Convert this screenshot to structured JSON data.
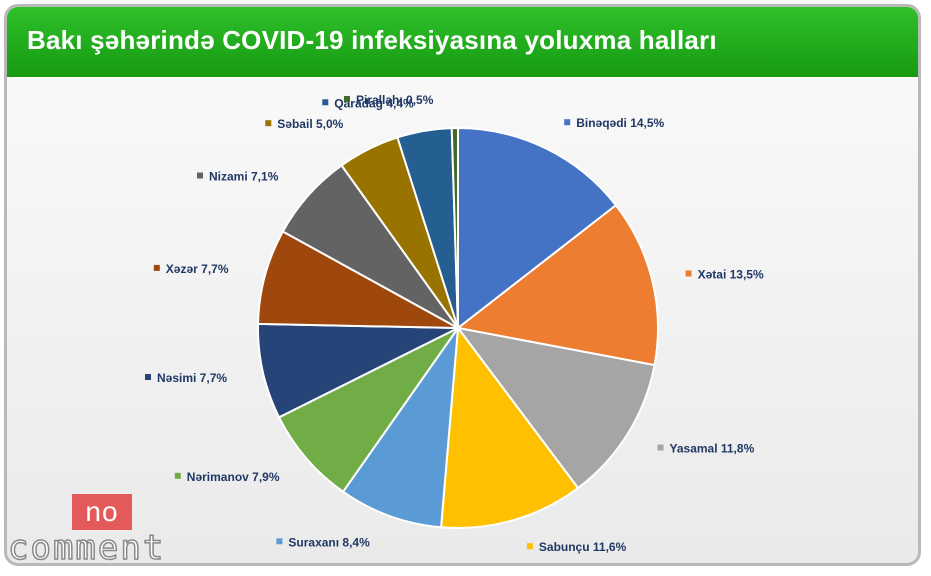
{
  "header": {
    "title": "Bakı şəhərində COVID-19 infeksiyasına yoluxma halları"
  },
  "logo": {
    "box_text": "no",
    "text": "comment"
  },
  "chart_data": {
    "type": "pie",
    "title": "Bakı şəhərində COVID-19 infeksiyasına yoluxma halları",
    "legend_placement": "labels outside slices",
    "slices": [
      {
        "label": "Binəqədi",
        "value": 14.5,
        "display": "Binəqədi 14,5%",
        "color": "#4472c4"
      },
      {
        "label": "Xətai",
        "value": 13.5,
        "display": "Xətai 13,5%",
        "color": "#ed7d31"
      },
      {
        "label": "Yasamal",
        "value": 11.8,
        "display": "Yasamal 11,8%",
        "color": "#a5a5a5"
      },
      {
        "label": "Sabunçu",
        "value": 11.6,
        "display": "Sabunçu 11,6%",
        "color": "#ffc000"
      },
      {
        "label": "Suraxanı",
        "value": 8.4,
        "display": "Suraxanı 8,4%",
        "color": "#5b9bd5"
      },
      {
        "label": "Nərimanov",
        "value": 7.9,
        "display": "Nərimanov 7,9%",
        "color": "#70ad47"
      },
      {
        "label": "Nəsimi",
        "value": 7.7,
        "display": "Nəsimi 7,7%",
        "color": "#264478"
      },
      {
        "label": "Xəzər",
        "value": 7.7,
        "display": "Xəzər 7,7%",
        "color": "#9e480e"
      },
      {
        "label": "Nizami",
        "value": 7.1,
        "display": "Nizami 7,1%",
        "color": "#636363"
      },
      {
        "label": "Səbail",
        "value": 5.0,
        "display": "Səbail 5,0%",
        "color": "#997300"
      },
      {
        "label": "Qaradağ",
        "value": 4.4,
        "display": "Qaradağ 4,4%",
        "color": "#255e91"
      },
      {
        "label": "Pirallahı",
        "value": 0.5,
        "display": "Pirallahı 0,5%",
        "color": "#43682b"
      }
    ]
  }
}
